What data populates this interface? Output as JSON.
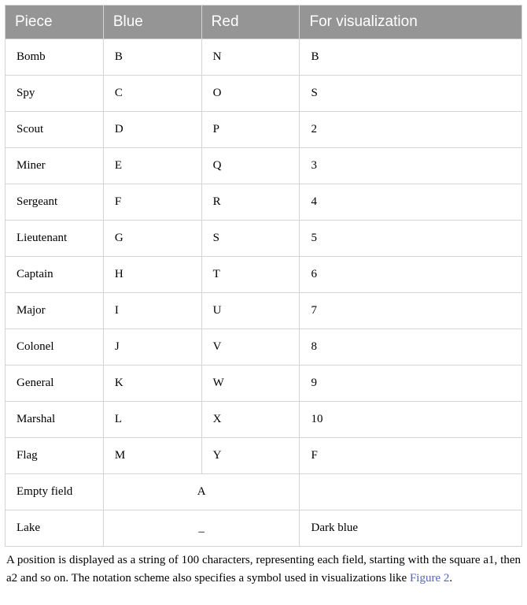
{
  "table": {
    "header_bg": "#959595",
    "header_fg": "#ffffff",
    "border_color": "#d4d4d4",
    "columns": [
      {
        "key": "piece",
        "label": "Piece",
        "width": "19%"
      },
      {
        "key": "blue",
        "label": "Blue",
        "width": "19%"
      },
      {
        "key": "red",
        "label": "Red",
        "width": "19%"
      },
      {
        "key": "viz",
        "label": "For visualization",
        "width": "43%"
      }
    ],
    "rows": [
      {
        "piece": "Bomb",
        "blue": "B",
        "red": "N",
        "viz": "B"
      },
      {
        "piece": "Spy",
        "blue": "C",
        "red": "O",
        "viz": "S"
      },
      {
        "piece": "Scout",
        "blue": "D",
        "red": "P",
        "viz": "2"
      },
      {
        "piece": "Miner",
        "blue": "E",
        "red": "Q",
        "viz": "3"
      },
      {
        "piece": "Sergeant",
        "blue": "F",
        "red": "R",
        "viz": "4"
      },
      {
        "piece": "Lieutenant",
        "blue": "G",
        "red": "S",
        "viz": "5"
      },
      {
        "piece": "Captain",
        "blue": "H",
        "red": "T",
        "viz": "6"
      },
      {
        "piece": "Major",
        "blue": "I",
        "red": "U",
        "viz": "7"
      },
      {
        "piece": "Colonel",
        "blue": "J",
        "red": "V",
        "viz": "8"
      },
      {
        "piece": "General",
        "blue": "K",
        "red": "W",
        "viz": "9"
      },
      {
        "piece": "Marshal",
        "blue": "L",
        "red": "X",
        "viz": "10"
      },
      {
        "piece": "Flag",
        "blue": "M",
        "red": "Y",
        "viz": "F"
      }
    ],
    "special_rows": [
      {
        "piece": "Empty field",
        "merged": "A",
        "viz": ""
      },
      {
        "piece": "Lake",
        "merged": "_",
        "viz": "Dark blue"
      }
    ]
  },
  "caption": {
    "pre": "A position is displayed as a string of 100 characters, representing each field, starting with the square a1, then a2 and so on. The notation scheme also specifies a symbol used in visualizations like ",
    "link": "Figure 2",
    "post": ".",
    "link_color": "#5560c9"
  }
}
